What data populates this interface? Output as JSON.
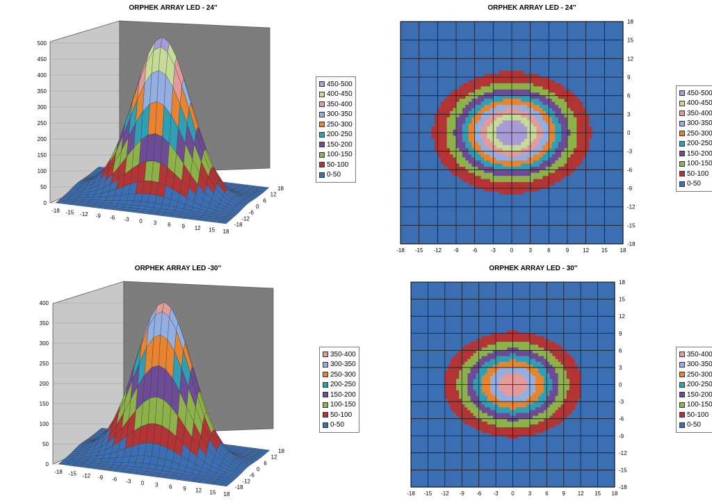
{
  "palette": {
    "0-50": "#3c6eb3",
    "50-100": "#b23434",
    "100-150": "#8eb24a",
    "150-200": "#6e4b96",
    "200-250": "#2e9fb5",
    "250-300": "#e8842f",
    "300-350": "#93aee0",
    "350-400": "#e29a9a",
    "400-450": "#c6db95",
    "450-500": "#a99bd6"
  },
  "charts": [
    {
      "title": "ORPHEK ARRAY LED - 24''",
      "legend": [
        "450-500",
        "400-450",
        "350-400",
        "300-350",
        "250-300",
        "200-250",
        "150-200",
        "100-150",
        "50-100",
        "0-50"
      ]
    },
    {
      "title": "ORPHEK ARRAY LED - 24''",
      "legend": [
        "450-500",
        "400-450",
        "350-400",
        "300-350",
        "250-300",
        "200-250",
        "150-200",
        "100-150",
        "50-100",
        "0-50"
      ]
    },
    {
      "title": "ORPHEK ARRAY LED -30''",
      "legend": [
        "350-400",
        "300-350",
        "250-300",
        "200-250",
        "150-200",
        "100-150",
        "50-100",
        "0-50"
      ]
    },
    {
      "title": "ORPHEK ARRAY LED - 30''",
      "legend": [
        "350-400",
        "300-350",
        "250-300",
        "200-250",
        "150-200",
        "100-150",
        "50-100",
        "0-50"
      ]
    }
  ],
  "chart_data": [
    {
      "type": "surface",
      "title": "ORPHEK ARRAY LED - 24''",
      "z_ticks": [
        0,
        50,
        100,
        150,
        200,
        250,
        300,
        350,
        400,
        450,
        500
      ],
      "zlim": [
        0,
        500
      ],
      "x_ticks": [
        -18,
        -15,
        -12,
        -9,
        -6,
        -3,
        0,
        3,
        6,
        9,
        12,
        15,
        18
      ],
      "y_ticks": [
        -18,
        -12,
        -6,
        0,
        6,
        12,
        18
      ],
      "bands": [
        "0-50",
        "50-100",
        "100-150",
        "150-200",
        "200-250",
        "250-300",
        "300-350",
        "350-400",
        "400-450",
        "450-500"
      ],
      "peak": 495
    },
    {
      "type": "contour",
      "title": "ORPHEK ARRAY LED - 24''",
      "x_ticks": [
        -18,
        -15,
        -12,
        -9,
        -6,
        -3,
        0,
        3,
        6,
        9,
        12,
        15,
        18
      ],
      "y_ticks": [
        18,
        15,
        12,
        9,
        6,
        3,
        0,
        -3,
        -6,
        -9,
        -12,
        -15,
        -18
      ],
      "xlim": [
        -18,
        18
      ],
      "ylim": [
        -18,
        18
      ],
      "bands": [
        "0-50",
        "50-100",
        "100-150",
        "150-200",
        "200-250",
        "250-300",
        "300-350",
        "350-400",
        "400-450",
        "450-500"
      ],
      "peak": 495
    },
    {
      "type": "surface",
      "title": "ORPHEK ARRAY LED -30''",
      "z_ticks": [
        0,
        50,
        100,
        150,
        200,
        250,
        300,
        350,
        400
      ],
      "zlim": [
        0,
        400
      ],
      "x_ticks": [
        -18,
        -15,
        -12,
        -9,
        -6,
        -3,
        0,
        3,
        6,
        9,
        12,
        15,
        18
      ],
      "y_ticks": [
        -18,
        -12,
        -6,
        0,
        6,
        12,
        18
      ],
      "bands": [
        "0-50",
        "50-100",
        "100-150",
        "150-200",
        "200-250",
        "250-300",
        "300-350",
        "350-400"
      ],
      "peak": 385
    },
    {
      "type": "contour",
      "title": "ORPHEK ARRAY LED - 30''",
      "x_ticks": [
        -18,
        -15,
        -12,
        -9,
        -6,
        -3,
        0,
        3,
        6,
        9,
        12,
        15,
        18
      ],
      "y_ticks": [
        18,
        15,
        12,
        9,
        6,
        3,
        0,
        -3,
        -6,
        -9,
        -12,
        -15,
        -18
      ],
      "xlim": [
        -18,
        18
      ],
      "ylim": [
        -18,
        18
      ],
      "bands": [
        "0-50",
        "50-100",
        "100-150",
        "150-200",
        "200-250",
        "250-300",
        "300-350",
        "350-400"
      ],
      "peak": 385
    }
  ]
}
